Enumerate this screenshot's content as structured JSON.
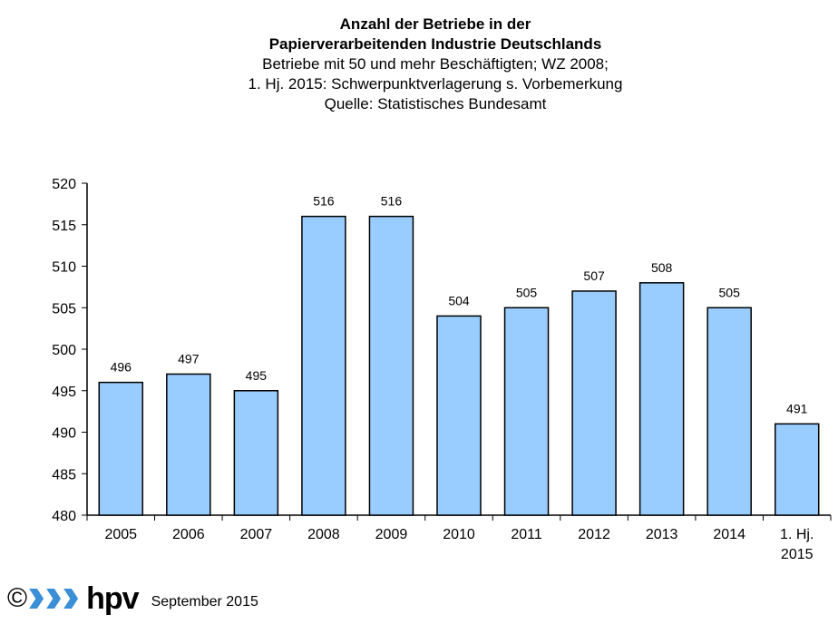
{
  "title_lines": [
    "Anzahl der Betriebe in der",
    "Papierverarbeitenden Industrie Deutschlands"
  ],
  "subtitle_lines": [
    "Betriebe mit 50 und mehr Beschäftigten; WZ 2008;",
    "1. Hj. 2015: Schwerpunktverlagerung  s. Vorbemerkung",
    "Quelle:  Statistisches  Bundesamt"
  ],
  "footer": {
    "copyright_symbol": "©",
    "logo_text": "hpv",
    "date": "September 2015"
  },
  "colors": {
    "bar_fill": "#99ccff",
    "bar_stroke": "#000000",
    "logo_chevron": "#3a8fd6"
  },
  "chart_data": {
    "type": "bar",
    "title": "Anzahl der Betriebe in der Papierverarbeitenden Industrie Deutschlands",
    "subtitle": "Betriebe mit 50 und mehr Beschäftigten; WZ 2008; 1. Hj. 2015: Schwerpunktverlagerung  s. Vorbemerkung; Quelle:  Statistisches  Bundesamt",
    "categories": [
      "2005",
      "2006",
      "2007",
      "2008",
      "2009",
      "2010",
      "2011",
      "2012",
      "2013",
      "2014",
      "1. Hj. 2015"
    ],
    "values": [
      496,
      497,
      495,
      516,
      516,
      504,
      505,
      507,
      508,
      505,
      491
    ],
    "data_labels": [
      "496",
      "497",
      "495",
      "516",
      "516",
      "504",
      "505",
      "507",
      "508",
      "505",
      "491"
    ],
    "ylim": [
      480,
      520
    ],
    "yticks": [
      480,
      485,
      490,
      495,
      500,
      505,
      510,
      515,
      520
    ],
    "xlabel": "",
    "ylabel": "",
    "grid": false,
    "legend": "none"
  }
}
